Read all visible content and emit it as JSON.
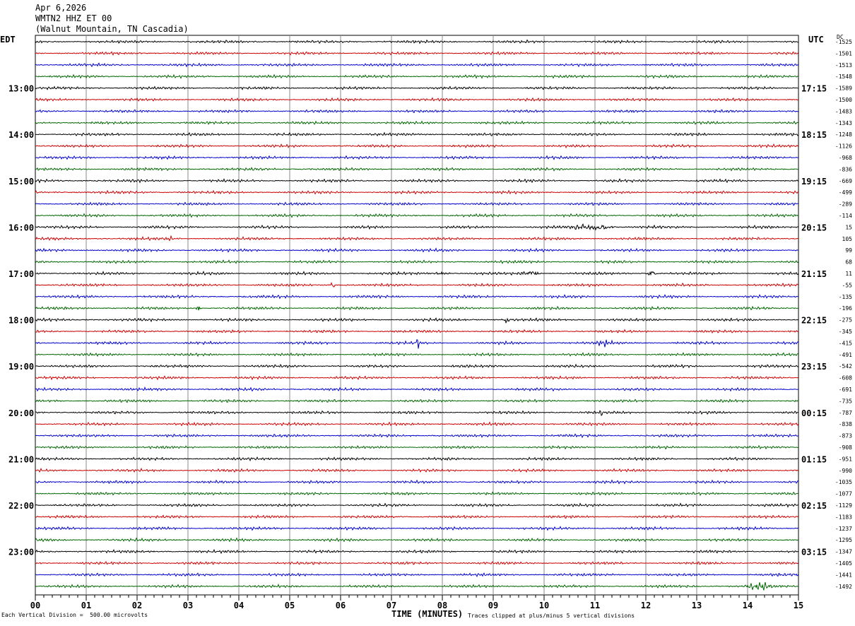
{
  "header": {
    "date": "Apr 6,2026",
    "station": "WMTN2 HHZ ET 00",
    "location": "(Walnut Mountain, TN Cascadia)"
  },
  "left_tz": "EDT",
  "right_tz": "UTC",
  "dc_label": "DC",
  "footer": {
    "scale_note": "Each Vertical Division =  500.00 microvolts",
    "xlabel": "TIME (MINUTES)",
    "clip_note": "Traces clipped at plus/minus 5 vertical divisions"
  },
  "colors": {
    "cycle": [
      "#000000",
      "#cc0000",
      "#0000cc",
      "#006600"
    ],
    "grid": "#888888"
  },
  "chart_data": {
    "type": "line",
    "title": "",
    "xlabel": "TIME (MINUTES)",
    "x_ticks": [
      "00",
      "01",
      "02",
      "03",
      "04",
      "05",
      "06",
      "07",
      "08",
      "09",
      "10",
      "11",
      "12",
      "13",
      "14",
      "15"
    ],
    "xlim": [
      0,
      15
    ],
    "traces_per_hour": 4,
    "minutes_per_trace": 15,
    "trace_count": 48,
    "left_hour_labels": [
      {
        "trace": 4,
        "label": "13:00"
      },
      {
        "trace": 8,
        "label": "14:00"
      },
      {
        "trace": 12,
        "label": "15:00"
      },
      {
        "trace": 16,
        "label": "16:00"
      },
      {
        "trace": 20,
        "label": "17:00"
      },
      {
        "trace": 24,
        "label": "18:00"
      },
      {
        "trace": 28,
        "label": "19:00"
      },
      {
        "trace": 32,
        "label": "20:00"
      },
      {
        "trace": 36,
        "label": "21:00"
      },
      {
        "trace": 40,
        "label": "22:00"
      },
      {
        "trace": 44,
        "label": "23:00"
      }
    ],
    "right_hour_labels": [
      {
        "trace": 4,
        "label": "17:15"
      },
      {
        "trace": 8,
        "label": "18:15"
      },
      {
        "trace": 12,
        "label": "19:15"
      },
      {
        "trace": 16,
        "label": "20:15"
      },
      {
        "trace": 20,
        "label": "21:15"
      },
      {
        "trace": 24,
        "label": "22:15"
      },
      {
        "trace": 28,
        "label": "23:15"
      },
      {
        "trace": 32,
        "label": "00:15"
      },
      {
        "trace": 36,
        "label": "01:15"
      },
      {
        "trace": 40,
        "label": "02:15"
      },
      {
        "trace": 44,
        "label": "03:15"
      }
    ],
    "dc_offsets": [
      "-1525",
      "-1501",
      "-1513",
      "-1548",
      "-1589",
      "-1500",
      "-1483",
      "-1343",
      "-1248",
      "-1126",
      "-968",
      "-836",
      "-669",
      "-499",
      "-289",
      "-114",
      "15",
      "105",
      "99",
      "68",
      "11",
      "-55",
      "-135",
      "-196",
      "-275",
      "-345",
      "-415",
      "-491",
      "-542",
      "-608",
      "-691",
      "-735",
      "-787",
      "-838",
      "-873",
      "-908",
      "-951",
      "-990",
      "-1035",
      "-1077",
      "-1129",
      "-1183",
      "-1237",
      "-1295",
      "-1347",
      "-1405",
      "-1441",
      "-1492"
    ],
    "events": [
      {
        "trace": 16,
        "start_min": 10.5,
        "end_min": 12.0,
        "amp": 2.2
      },
      {
        "trace": 17,
        "start_min": 2.6,
        "end_min": 2.75,
        "amp": 2.5
      },
      {
        "trace": 20,
        "start_min": 7.8,
        "end_min": 8.4,
        "amp": 1.6
      },
      {
        "trace": 20,
        "start_min": 9.5,
        "end_min": 10.2,
        "amp": 1.7
      },
      {
        "trace": 20,
        "start_min": 12.0,
        "end_min": 12.4,
        "amp": 1.5
      },
      {
        "trace": 21,
        "start_min": 5.8,
        "end_min": 5.95,
        "amp": 3.2
      },
      {
        "trace": 23,
        "start_min": 3.15,
        "end_min": 3.3,
        "amp": 3.0
      },
      {
        "trace": 26,
        "start_min": 7.45,
        "end_min": 7.65,
        "amp": 4.0
      },
      {
        "trace": 26,
        "start_min": 11.0,
        "end_min": 11.6,
        "amp": 1.4
      },
      {
        "trace": 24,
        "start_min": 9.2,
        "end_min": 9.4,
        "amp": 1.8
      },
      {
        "trace": 32,
        "start_min": 11.05,
        "end_min": 11.25,
        "amp": 2.0
      },
      {
        "trace": 47,
        "start_min": 13.9,
        "end_min": 14.9,
        "amp": 1.7
      }
    ]
  }
}
